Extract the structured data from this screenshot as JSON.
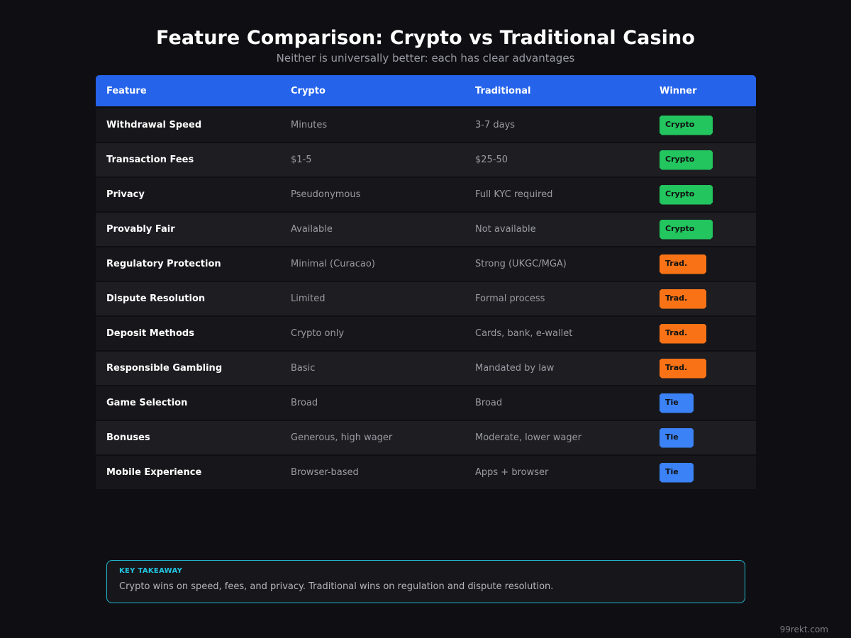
{
  "title": "Feature Comparison: Crypto vs Traditional Casino",
  "subtitle": "Neither is universally better: each has clear advantages",
  "table": {
    "headers": [
      "Feature",
      "Crypto",
      "Traditional",
      "Winner"
    ],
    "rows": [
      {
        "feature": "Withdrawal Speed",
        "crypto": "Minutes",
        "traditional": "3-7 days",
        "winner": "Crypto",
        "winner_type": "crypto"
      },
      {
        "feature": "Transaction Fees",
        "crypto": "$1-5",
        "traditional": "$25-50",
        "winner": "Crypto",
        "winner_type": "crypto"
      },
      {
        "feature": "Privacy",
        "crypto": "Pseudonymous",
        "traditional": "Full KYC required",
        "winner": "Crypto",
        "winner_type": "crypto"
      },
      {
        "feature": "Provably Fair",
        "crypto": "Available",
        "traditional": "Not available",
        "winner": "Crypto",
        "winner_type": "crypto"
      },
      {
        "feature": "Regulatory Protection",
        "crypto": "Minimal (Curacao)",
        "traditional": "Strong (UKGC/MGA)",
        "winner": "Trad.",
        "winner_type": "trad"
      },
      {
        "feature": "Dispute Resolution",
        "crypto": "Limited",
        "traditional": "Formal process",
        "winner": "Trad.",
        "winner_type": "trad"
      },
      {
        "feature": "Deposit Methods",
        "crypto": "Crypto only",
        "traditional": "Cards, bank, e-wallet",
        "winner": "Trad.",
        "winner_type": "trad"
      },
      {
        "feature": "Responsible Gambling",
        "crypto": "Basic",
        "traditional": "Mandated by law",
        "winner": "Trad.",
        "winner_type": "trad"
      },
      {
        "feature": "Game Selection",
        "crypto": "Broad",
        "traditional": "Broad",
        "winner": "Tie",
        "winner_type": "tie"
      },
      {
        "feature": "Bonuses",
        "crypto": "Generous, high wager",
        "traditional": "Moderate, lower wager",
        "winner": "Tie",
        "winner_type": "tie"
      },
      {
        "feature": "Mobile Experience",
        "crypto": "Browser-based",
        "traditional": "Apps + browser",
        "winner": "Tie",
        "winner_type": "tie"
      }
    ]
  },
  "takeaway": {
    "label": "KEY TAKEAWAY",
    "text": "Crypto wins on speed, fees, and privacy. Traditional wins on regulation and dispute resolution."
  },
  "footer": "99rekt.com",
  "colors": {
    "header": "#2563eb",
    "crypto_badge": "#22c55e",
    "trad_badge": "#f97316",
    "tie_badge": "#3b82f6",
    "takeaway_border": "#22b8cf"
  }
}
